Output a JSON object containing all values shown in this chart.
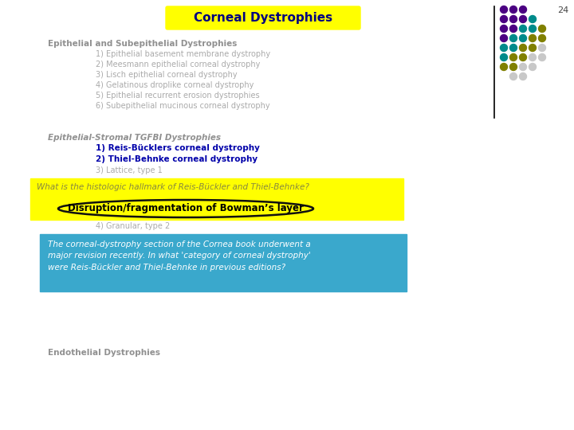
{
  "title": "Corneal Dystrophies",
  "title_bg": "#FFFF00",
  "title_color": "#000080",
  "slide_num": "24",
  "section1_header": "Epithelial and Subepithelial Dystrophies",
  "section1_items": [
    "1) Epithelial basement membrane dystrophy",
    "2) Meesmann epithelial corneal dystrophy",
    "3) Lisch epithelial corneal dystrophy",
    "4) Gelatinous droplike corneal dystrophy",
    "5) Epithelial recurrent erosion dystrophies",
    "6) Subepithelial mucinous corneal dystrophy"
  ],
  "section2_header": "Epithelial-Stromal TGFBI Dystrophies",
  "section2_items_gray": [
    "3) Lattice, type 1"
  ],
  "section2_items_bold_blue": [
    "1) Reis-Bücklers corneal dystrophy",
    "2) Thiel-Behnke corneal dystrophy"
  ],
  "yellow_box_question": "What is the histologic hallmark of Reis-Bückler and Thiel-Behnke?",
  "yellow_box_answer": "Disruption/fragmentation of Bowman’s layer",
  "hidden_item": "4) Granular, type 2",
  "blue_box_text": "The corneal-dystrophy section of the Cornea book underwent a\nmajor revision recently. In what 'category of corneal dystrophy'\nwere Reis-Bückler and Thiel-Behnke in previous editions?",
  "endothelial_text": "Endothelial Dystrophies",
  "bg_color": "#FFFFFF",
  "gray_text_color": "#AAAAAA",
  "section_header_color": "#909090",
  "blue_box_bg": "#3AA8CC",
  "blue_box_text_color": "#FFFFFF",
  "dot_grid": [
    [
      "#4B0082",
      "#4B0082",
      "#4B0082"
    ],
    [
      "#4B0082",
      "#4B0082",
      "#4B0082",
      "#008B8B"
    ],
    [
      "#4B0082",
      "#4B0082",
      "#008B8B",
      "#008B8B",
      "#808000"
    ],
    [
      "#4B0082",
      "#008B8B",
      "#008B8B",
      "#808000",
      "#808000"
    ],
    [
      "#008B8B",
      "#008B8B",
      "#808000",
      "#808000",
      "#C8C8C8"
    ],
    [
      "#008B8B",
      "#808000",
      "#808000",
      "#C8C8C8",
      "#C8C8C8"
    ],
    [
      "#808000",
      "#808000",
      "#C8C8C8",
      "#C8C8C8"
    ],
    [
      null,
      "#C8C8C8",
      "#C8C8C8"
    ]
  ]
}
